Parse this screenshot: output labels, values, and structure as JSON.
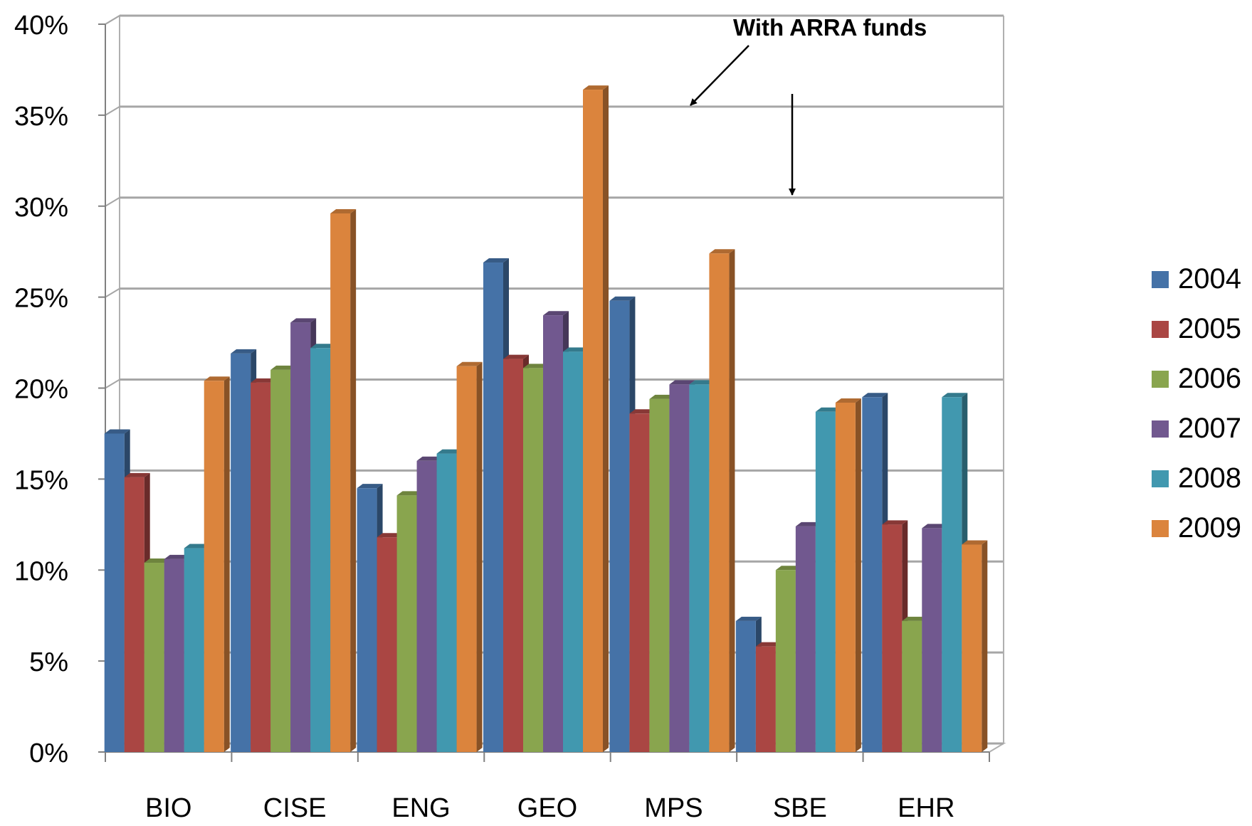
{
  "chart_data": {
    "type": "bar",
    "categories": [
      "BIO",
      "CISE",
      "ENG",
      "GEO",
      "MPS",
      "SBE",
      "EHR"
    ],
    "series": [
      {
        "name": "2004",
        "values": [
          17.5,
          21.9,
          14.5,
          26.9,
          24.8,
          7.2,
          19.5
        ]
      },
      {
        "name": "2005",
        "values": [
          15.1,
          20.3,
          11.8,
          21.6,
          18.6,
          5.8,
          12.5
        ]
      },
      {
        "name": "2006",
        "values": [
          10.4,
          21.0,
          14.1,
          21.1,
          19.4,
          10.0,
          7.2
        ]
      },
      {
        "name": "2007",
        "values": [
          10.6,
          23.6,
          16.0,
          24.0,
          20.2,
          12.4,
          12.3
        ]
      },
      {
        "name": "2008",
        "values": [
          11.2,
          22.2,
          16.4,
          22.0,
          20.2,
          18.7,
          19.5
        ]
      },
      {
        "name": "2009",
        "values": [
          20.4,
          29.6,
          21.2,
          36.4,
          27.4,
          19.2,
          11.4
        ]
      }
    ],
    "colors": [
      "#4572a7",
      "#aa4643",
      "#89a54e",
      "#71588f",
      "#4198af",
      "#db843d"
    ],
    "yticks": [
      "0%",
      "5%",
      "10%",
      "15%",
      "20%",
      "25%",
      "30%",
      "35%",
      "40%"
    ],
    "ylim": [
      0,
      40
    ],
    "grid": true,
    "legend_position": "right",
    "annotation": "With ARRA funds",
    "title": "",
    "xlabel": "",
    "ylabel": ""
  }
}
